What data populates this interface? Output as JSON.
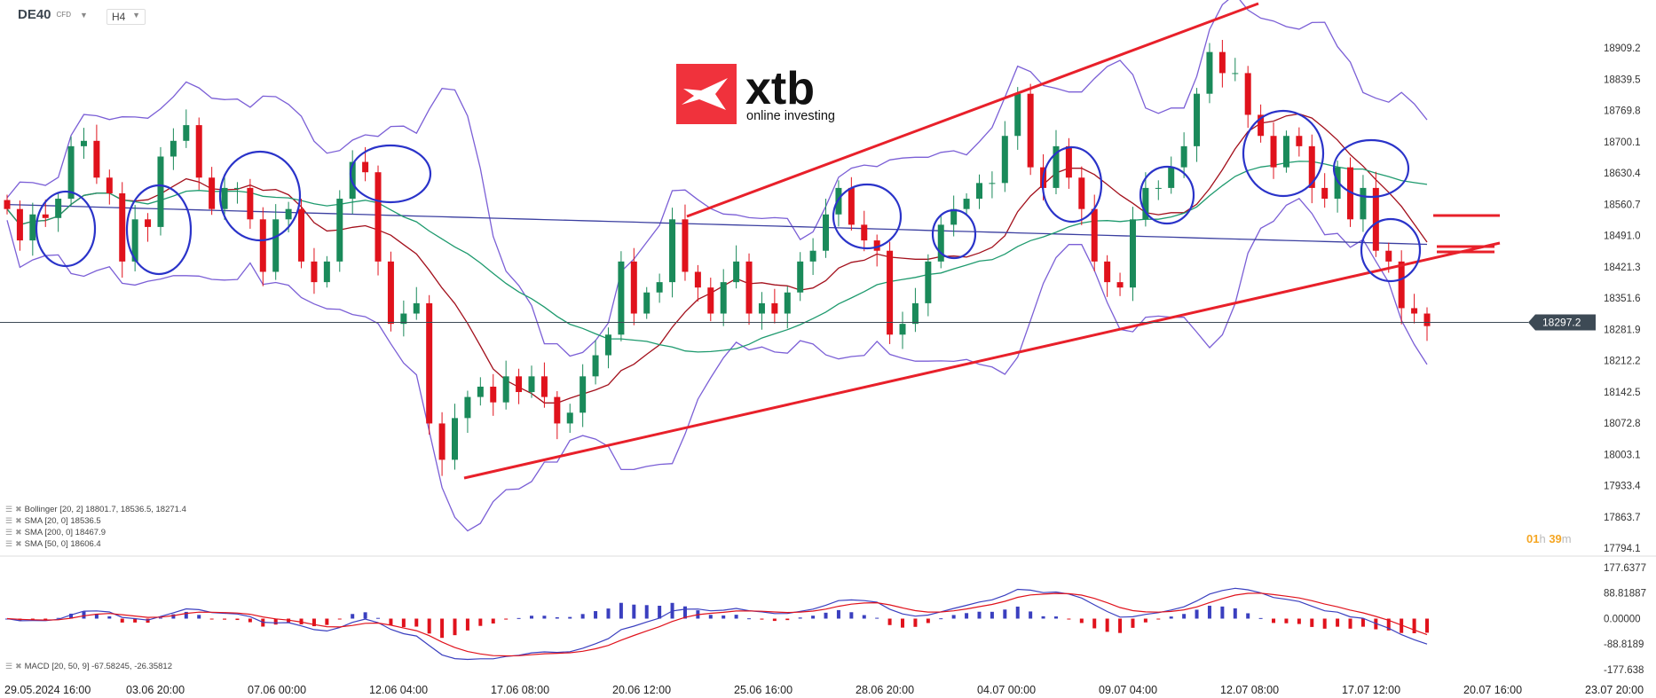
{
  "header": {
    "symbol": "DE40",
    "instrument_type": "CFD",
    "timeframe": "H4"
  },
  "logo": {
    "brand": "xtb",
    "tagline": "online investing",
    "color": "#f0323c"
  },
  "indicators": [
    {
      "label": "Bollinger  [20, 2] 18801.7,  18536.5,  18271.4",
      "color": "#7b5fd6"
    },
    {
      "label": "SMA [20, 0] 18536.5",
      "color": "#a3101c"
    },
    {
      "label": "SMA [200, 0] 18467.9",
      "color": "#3b3fa0"
    },
    {
      "label": "SMA [50, 0] 18606.4",
      "color": "#1e9a6e"
    }
  ],
  "macd_legend": "MACD [20, 50, 9] -67.58245,  -26.35812",
  "countdown": {
    "hours": "01",
    "h_unit": "h",
    "minutes": "39",
    "m_unit": "m"
  },
  "current_price": "18297.2",
  "colors": {
    "up": "#1a8a5a",
    "down": "#e0121c",
    "trendline": "#e8202a",
    "circle": "#2a33c9",
    "macd": "#3a3fbf",
    "signal": "#e0121c"
  },
  "chart_data": {
    "type": "candlestick",
    "title": "",
    "price_axis": {
      "ticks": [
        "18909.2",
        "18839.5",
        "18769.8",
        "18700.1",
        "18630.4",
        "18560.7",
        "18491.0",
        "18421.3",
        "18351.6",
        "18281.9",
        "18212.2",
        "18142.5",
        "18072.8",
        "18003.1",
        "17933.4",
        "17863.7",
        "17794.1"
      ],
      "ylim": [
        17794.1,
        18909.2
      ]
    },
    "macd_axis": {
      "ticks": [
        "177.6377",
        "88.81887",
        "0.00000",
        "-88.8189",
        "-177.638"
      ],
      "ylim": [
        -177.638,
        177.6377
      ]
    },
    "x_ticks": [
      "29.05.2024  16:00",
      "03.06  20:00",
      "07.06  00:00",
      "12.06  04:00",
      "17.06  08:00",
      "20.06  12:00",
      "25.06  16:00",
      "28.06  20:00",
      "04.07  00:00",
      "09.07  04:00",
      "12.07  08:00",
      "17.07  12:00",
      "20.07  16:00",
      "23.07  20:00"
    ],
    "closes": [
      18550,
      18480,
      18538,
      18530,
      18573,
      18690,
      18702,
      18620,
      18585,
      18433,
      18527,
      18510,
      18667,
      18702,
      18737,
      18620,
      18550,
      18597,
      18597,
      18527,
      18410,
      18527,
      18550,
      18433,
      18387,
      18433,
      18573,
      18655,
      18632,
      18433,
      18294,
      18317,
      18340,
      18072,
      17991,
      18084,
      18131,
      18154,
      18119,
      18177,
      18142,
      18177,
      18131,
      18072,
      18096,
      18177,
      18224,
      18270,
      18433,
      18317,
      18364,
      18387,
      18527,
      18410,
      18375,
      18317,
      18387,
      18433,
      18317,
      18340,
      18317,
      18364,
      18433,
      18457,
      18538,
      18597,
      18515,
      18480,
      18457,
      18270,
      18294,
      18340,
      18433,
      18515,
      18550,
      18573,
      18608,
      18608,
      18713,
      18807,
      18643,
      18597,
      18690,
      18620,
      18550,
      18433,
      18387,
      18375,
      18527,
      18597,
      18597,
      18643,
      18690,
      18807,
      18900,
      18853,
      18853,
      18760,
      18713,
      18643,
      18713,
      18690,
      18597,
      18573,
      18643,
      18527,
      18597,
      18457,
      18433,
      18329,
      18317,
      18289
    ],
    "overlays": [
      "Bollinger [20, 2]",
      "SMA [20, 0]",
      "SMA [200, 0]",
      "SMA [50, 0]"
    ],
    "sub_chart": "MACD [20, 50, 9]"
  }
}
